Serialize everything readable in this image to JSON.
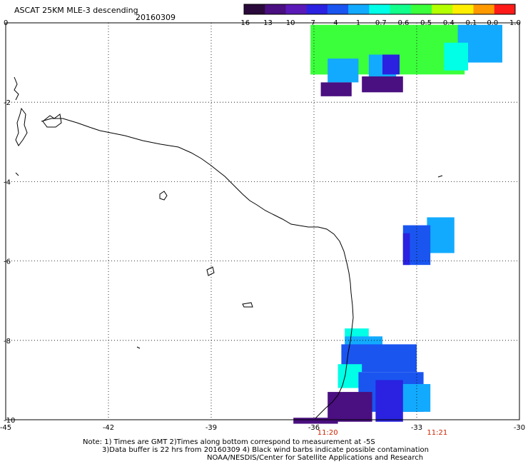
{
  "header": {
    "title": "ASCAT 25KM MLE-3 descending",
    "date": "20160309"
  },
  "colorbar": {
    "tick_labels": [
      "-16",
      "-13",
      "-10",
      "-7",
      "-4",
      "-1",
      "-0.7",
      "-0.6",
      "-0.5",
      "-0.4",
      "-0.1",
      "0.0",
      "1.0"
    ],
    "colors": [
      "#2a0a3a",
      "#4a0f80",
      "#5a1ab8",
      "#2a22e0",
      "#1a55f0",
      "#12aaff",
      "#00ffe6",
      "#12ff8c",
      "#3cff3c",
      "#b4ff00",
      "#ffee00",
      "#ff9900",
      "#ff1a1a"
    ]
  },
  "axes": {
    "x_tick_labels": [
      "-45",
      "-42",
      "-39",
      "-36",
      "-33",
      "-30"
    ],
    "y_tick_labels": [
      "0",
      "-2",
      "-4",
      "-6",
      "-8",
      "-10"
    ],
    "lon_range": [
      -45,
      -30
    ],
    "lat_range": [
      -10,
      0
    ],
    "grid": true
  },
  "time_labels": [
    {
      "text": "11:20",
      "lon": -35.6
    },
    {
      "text": "11:21",
      "lon": -32.4
    }
  ],
  "time_label_color": "#cc2200",
  "notes": {
    "line1": "Note: 1) Times are GMT 2)Times along bottom correspond to measurement at -5S",
    "line2": "3)Data buffer is 22 hrs from 20160309 4) Black wind barbs indicate possible contamination",
    "line3": "NOAA/NESDIS/Center for Satellite Applications and Research"
  },
  "swaths": [
    {
      "name": "north",
      "cells": [
        {
          "lon": [
            -36.1,
            -31.6
          ],
          "lat": [
            -0.05,
            -1.3
          ],
          "color": "#3cff3c"
        },
        {
          "lon": [
            -36.1,
            -35.5
          ],
          "lat": [
            -0.9,
            -1.3
          ],
          "color": "#3cff3c"
        },
        {
          "lon": [
            -31.8,
            -30.5
          ],
          "lat": [
            -0.05,
            -1.0
          ],
          "color": "#12aaff"
        },
        {
          "lon": [
            -32.2,
            -31.5
          ],
          "lat": [
            -0.5,
            -1.2
          ],
          "color": "#00ffe6"
        },
        {
          "lon": [
            -35.6,
            -34.7
          ],
          "lat": [
            -0.9,
            -1.5
          ],
          "color": "#12aaff"
        },
        {
          "lon": [
            -34.4,
            -33.6
          ],
          "lat": [
            -0.8,
            -1.4
          ],
          "color": "#12aaff"
        },
        {
          "lon": [
            -34.0,
            -33.5
          ],
          "lat": [
            -0.8,
            -1.3
          ],
          "color": "#2a22e0"
        },
        {
          "lon": [
            -35.8,
            -34.9
          ],
          "lat": [
            -1.5,
            -1.85
          ],
          "color": "#4a0f80"
        },
        {
          "lon": [
            -34.6,
            -33.4
          ],
          "lat": [
            -1.35,
            -1.75
          ],
          "color": "#4a0f80"
        }
      ]
    },
    {
      "name": "east",
      "cells": [
        {
          "lon": [
            -32.7,
            -31.9
          ],
          "lat": [
            -4.9,
            -5.8
          ],
          "color": "#12aaff"
        },
        {
          "lon": [
            -33.4,
            -32.6
          ],
          "lat": [
            -5.1,
            -6.1
          ],
          "color": "#1a55f0"
        },
        {
          "lon": [
            -33.4,
            -33.2
          ],
          "lat": [
            -5.3,
            -6.1
          ],
          "color": "#2a22e0"
        }
      ]
    },
    {
      "name": "south",
      "cells": [
        {
          "lon": [
            -35.1,
            -34.4
          ],
          "lat": [
            -7.7,
            -8.0
          ],
          "color": "#00ffe6"
        },
        {
          "lon": [
            -35.1,
            -34.0
          ],
          "lat": [
            -7.9,
            -8.4
          ],
          "color": "#12aaff"
        },
        {
          "lon": [
            -35.2,
            -33.0
          ],
          "lat": [
            -8.1,
            -8.8
          ],
          "color": "#1a55f0"
        },
        {
          "lon": [
            -35.3,
            -34.6
          ],
          "lat": [
            -8.6,
            -9.2
          ],
          "color": "#00ffe6"
        },
        {
          "lon": [
            -34.7,
            -32.8
          ],
          "lat": [
            -8.8,
            -9.8
          ],
          "color": "#1a55f0"
        },
        {
          "lon": [
            -33.6,
            -32.6
          ],
          "lat": [
            -9.1,
            -9.8
          ],
          "color": "#12aaff"
        },
        {
          "lon": [
            -34.2,
            -33.4
          ],
          "lat": [
            -9.0,
            -10.05
          ],
          "color": "#2a22e0"
        },
        {
          "lon": [
            -35.6,
            -34.3
          ],
          "lat": [
            -9.3,
            -10.05
          ],
          "color": "#4a0f80"
        },
        {
          "lon": [
            -36.6,
            -35.3
          ],
          "lat": [
            -9.95,
            -10.1
          ],
          "color": "#4a0f80"
        }
      ]
    }
  ]
}
